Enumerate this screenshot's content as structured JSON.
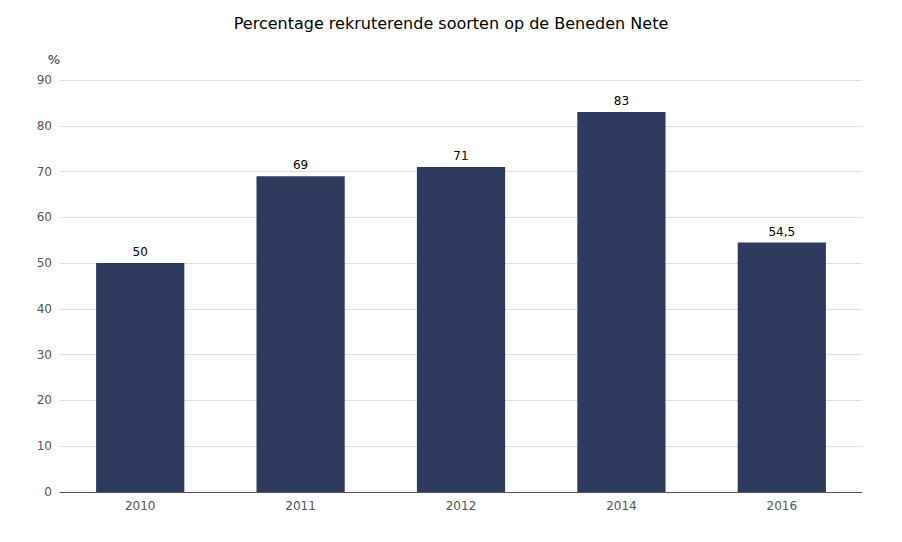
{
  "chart_data": {
    "type": "bar",
    "title": "Percentage rekruterende soorten op de Beneden Nete",
    "ylabel": "%",
    "categories": [
      "2010",
      "2011",
      "2012",
      "2014",
      "2016"
    ],
    "values": [
      50,
      69,
      71,
      83,
      54.5
    ],
    "value_labels": [
      "50",
      "69",
      "71",
      "83",
      "54,5"
    ],
    "data_labels": true,
    "color": "#2E3B5E",
    "ylim": [
      0,
      90
    ],
    "yticks": [
      0,
      10,
      20,
      30,
      40,
      50,
      60,
      70,
      80,
      90
    ],
    "grid": true
  }
}
